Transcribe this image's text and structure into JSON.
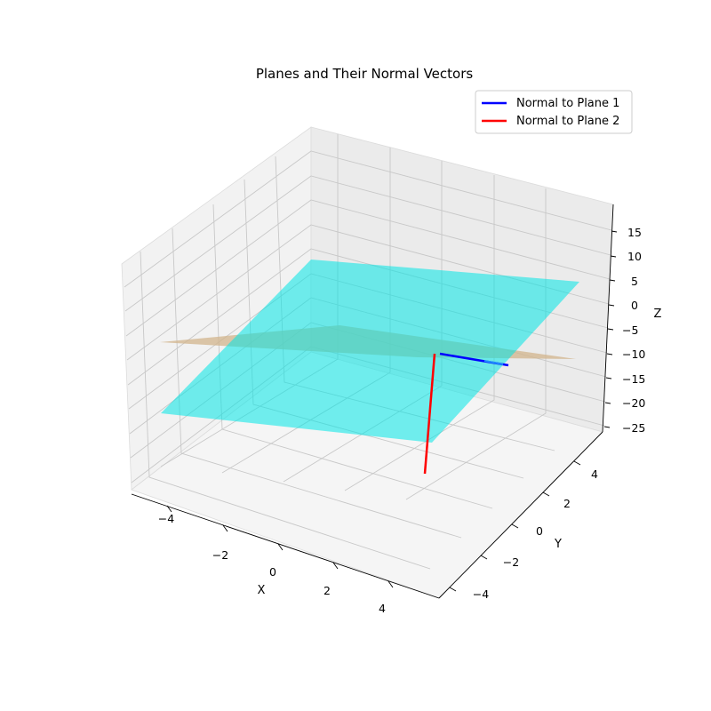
{
  "chart_data": {
    "type": "3d-surface-with-vectors",
    "title": "Planes and Their Normal Vectors",
    "xlabel": "X",
    "ylabel": "Y",
    "zlabel": "Z",
    "xlim": [
      -5,
      5
    ],
    "ylim": [
      -5,
      5
    ],
    "zlim": [
      -27,
      19
    ],
    "x_ticks": [
      "−4",
      "−2",
      "0",
      "2",
      "4"
    ],
    "y_ticks": [
      "−4",
      "−2",
      "0",
      "2",
      "4"
    ],
    "z_ticks": [
      "15",
      "10",
      "5",
      "0",
      "−5",
      "−10",
      "−15",
      "−20",
      "−25"
    ],
    "grid": true,
    "legend_position": "top-right",
    "planes": [
      {
        "color": "#d2b48c",
        "opacity": 0.75
      },
      {
        "color": "#00e5e5",
        "opacity": 0.55
      }
    ],
    "series": [
      {
        "name": "Normal to Plane 1",
        "color": "#0000ff"
      },
      {
        "name": "Normal to Plane 2",
        "color": "#ff0000"
      }
    ]
  }
}
